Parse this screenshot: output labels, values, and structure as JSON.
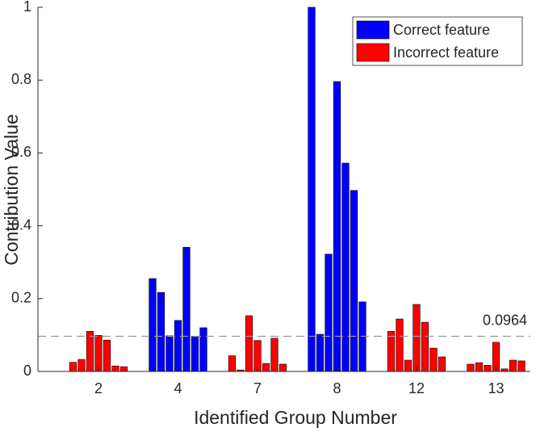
{
  "chart_data": {
    "type": "grouped-bar",
    "xlabel": "Identified Group Number",
    "ylabel": "Contribution Value",
    "categories": [
      "2",
      "4",
      "7",
      "8",
      "12",
      "13"
    ],
    "values": [
      [
        0.025,
        0.033,
        0.11,
        0.099,
        0.086,
        0.015,
        0.013
      ],
      [
        0.255,
        0.217,
        0.098,
        0.14,
        0.341,
        0.096,
        0.12
      ],
      [
        0.043,
        0.004,
        0.153,
        0.085,
        0.022,
        0.091,
        0.02
      ],
      [
        1.0,
        0.102,
        0.322,
        0.796,
        0.572,
        0.497,
        0.191
      ],
      [
        0.11,
        0.144,
        0.031,
        0.184,
        0.135,
        0.064,
        0.04
      ],
      [
        0.02,
        0.024,
        0.017,
        0.08,
        0.007,
        0.031,
        0.029
      ]
    ],
    "legend": [
      {
        "name": "Correct feature",
        "color": "#0000ff"
      },
      {
        "name": "Incorrect feature",
        "color": "#ff0000"
      }
    ],
    "group_legend": [
      1,
      0,
      1,
      0,
      1,
      1
    ],
    "threshold": 0.0964,
    "ylim": [
      0,
      1
    ],
    "yticks": [
      0,
      0.2,
      0.4,
      0.6,
      0.8,
      1
    ],
    "legend_position": "top-right"
  }
}
